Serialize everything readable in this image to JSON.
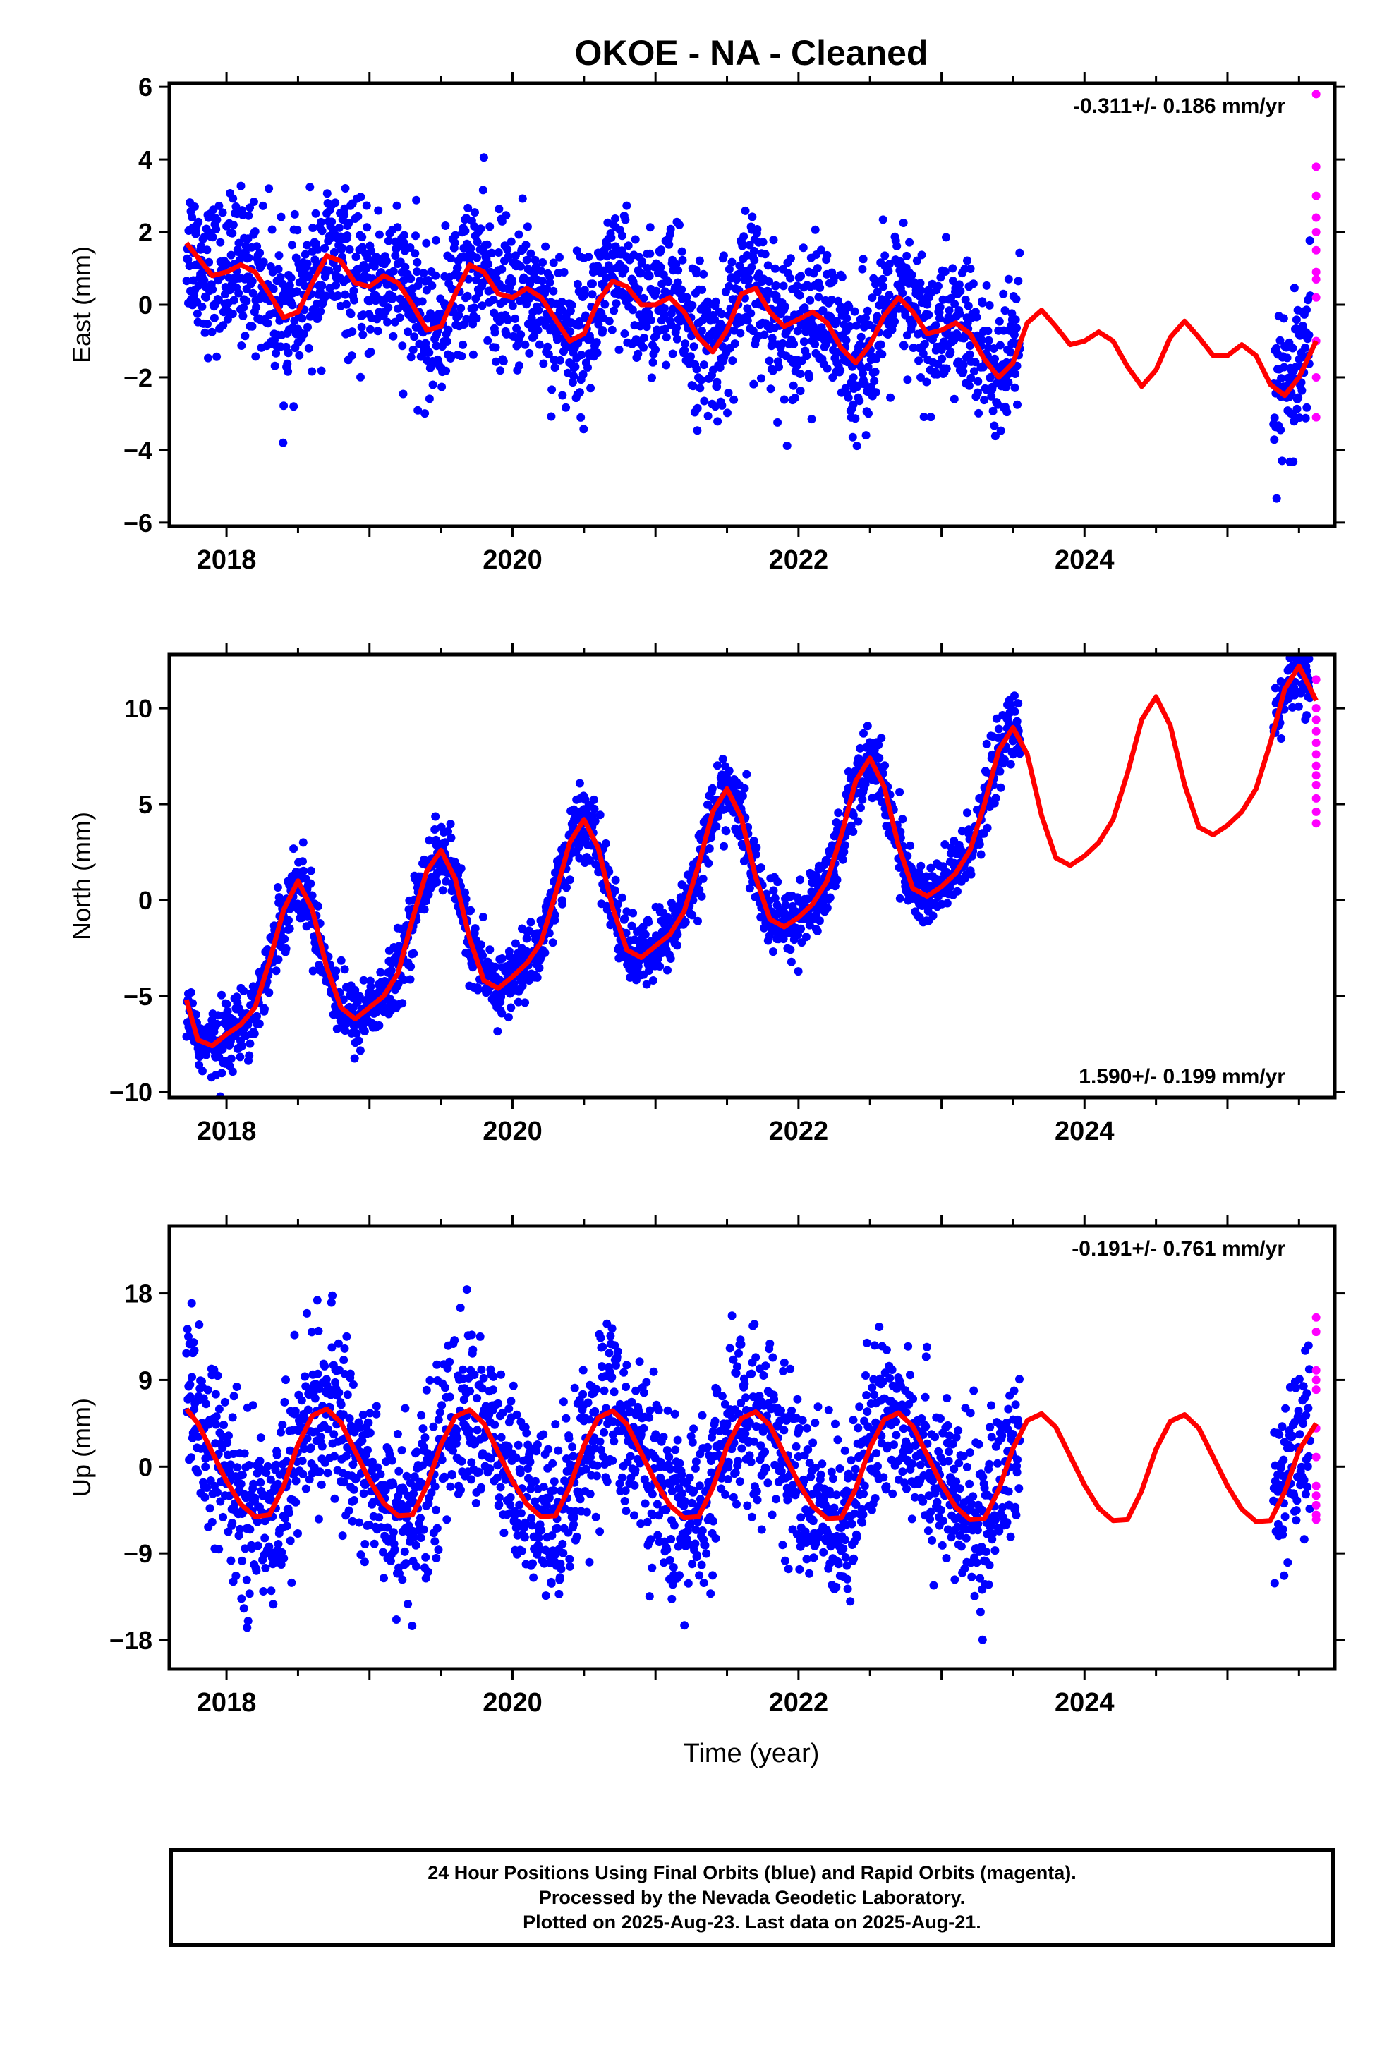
{
  "title": "OKOE  - NA - Cleaned",
  "xlabel": "Time (year)",
  "footer": {
    "line1": "24 Hour Positions Using Final Orbits (blue) and Rapid Orbits (magenta).",
    "line2": "Processed by the Nevada Geodetic Laboratory.",
    "line3": "Plotted on 2025-Aug-23. Last data on 2025-Aug-21."
  },
  "colors": {
    "final": "#0000ff",
    "rapid": "#ff00ff",
    "model": "#ff0000",
    "frame": "#000000"
  },
  "chart_data": [
    {
      "type": "scatter",
      "id": "east",
      "ylabel": "East (mm)",
      "rate": "-0.311+/- 0.186 mm/yr",
      "rate_position": "top-right",
      "xlim": [
        2017.6,
        2025.75
      ],
      "ylim": [
        -6.1,
        6.1
      ],
      "xticks": [
        2018,
        2020,
        2022,
        2024
      ],
      "yticks": [
        -6,
        -4,
        -2,
        0,
        2,
        4,
        6
      ],
      "final_orbits": {
        "spans": [
          [
            2017.72,
            2023.55
          ],
          [
            2025.32,
            2025.58
          ]
        ],
        "model_samples": [
          [
            2017.72,
            1.7
          ],
          [
            2017.8,
            1.3
          ],
          [
            2017.9,
            0.8
          ],
          [
            2018.0,
            0.9
          ],
          [
            2018.1,
            1.1
          ],
          [
            2018.2,
            0.9
          ],
          [
            2018.3,
            0.3
          ],
          [
            2018.4,
            -0.35
          ],
          [
            2018.5,
            -0.2
          ],
          [
            2018.6,
            0.6
          ],
          [
            2018.7,
            1.35
          ],
          [
            2018.8,
            1.2
          ],
          [
            2018.9,
            0.6
          ],
          [
            2019.0,
            0.5
          ],
          [
            2019.1,
            0.8
          ],
          [
            2019.2,
            0.6
          ],
          [
            2019.3,
            0.0
          ],
          [
            2019.4,
            -0.7
          ],
          [
            2019.5,
            -0.6
          ],
          [
            2019.6,
            0.3
          ],
          [
            2019.7,
            1.1
          ],
          [
            2019.8,
            0.9
          ],
          [
            2019.9,
            0.3
          ],
          [
            2020.0,
            0.2
          ],
          [
            2020.1,
            0.45
          ],
          [
            2020.2,
            0.2
          ],
          [
            2020.3,
            -0.4
          ],
          [
            2020.4,
            -1.0
          ],
          [
            2020.5,
            -0.8
          ],
          [
            2020.6,
            0.1
          ],
          [
            2020.7,
            0.65
          ],
          [
            2020.8,
            0.5
          ],
          [
            2020.9,
            0.0
          ],
          [
            2021.0,
            0.0
          ],
          [
            2021.1,
            0.2
          ],
          [
            2021.2,
            -0.2
          ],
          [
            2021.3,
            -0.9
          ],
          [
            2021.4,
            -1.3
          ],
          [
            2021.5,
            -0.7
          ],
          [
            2021.6,
            0.3
          ],
          [
            2021.7,
            0.45
          ],
          [
            2021.8,
            -0.2
          ],
          [
            2021.9,
            -0.6
          ],
          [
            2022.0,
            -0.4
          ],
          [
            2022.1,
            -0.2
          ],
          [
            2022.2,
            -0.5
          ],
          [
            2022.3,
            -1.2
          ],
          [
            2022.4,
            -1.6
          ],
          [
            2022.5,
            -1.1
          ],
          [
            2022.6,
            -0.3
          ],
          [
            2022.7,
            0.2
          ],
          [
            2022.8,
            -0.2
          ],
          [
            2022.9,
            -0.8
          ],
          [
            2023.0,
            -0.7
          ],
          [
            2023.1,
            -0.5
          ],
          [
            2023.2,
            -0.8
          ],
          [
            2023.3,
            -1.5
          ],
          [
            2023.4,
            -2.0
          ],
          [
            2023.5,
            -1.6
          ]
        ],
        "scatter_sigma_mm": 1.0,
        "scatter_count": 2100
      },
      "rapid_orbits": {
        "x": 2025.62,
        "values": [
          5.8,
          3.8,
          3.0,
          2.4,
          2.0,
          1.5,
          0.9,
          0.7,
          0.2,
          -1.0,
          -2.0,
          -3.1
        ]
      },
      "model_curve": [
        [
          2017.72,
          1.7
        ],
        [
          2017.8,
          1.3
        ],
        [
          2017.9,
          0.8
        ],
        [
          2018.0,
          0.9
        ],
        [
          2018.1,
          1.1
        ],
        [
          2018.2,
          0.9
        ],
        [
          2018.3,
          0.3
        ],
        [
          2018.4,
          -0.35
        ],
        [
          2018.5,
          -0.2
        ],
        [
          2018.6,
          0.6
        ],
        [
          2018.7,
          1.35
        ],
        [
          2018.8,
          1.2
        ],
        [
          2018.9,
          0.6
        ],
        [
          2019.0,
          0.5
        ],
        [
          2019.1,
          0.8
        ],
        [
          2019.2,
          0.6
        ],
        [
          2019.3,
          0.0
        ],
        [
          2019.4,
          -0.7
        ],
        [
          2019.5,
          -0.6
        ],
        [
          2019.6,
          0.3
        ],
        [
          2019.7,
          1.1
        ],
        [
          2019.8,
          0.9
        ],
        [
          2019.9,
          0.3
        ],
        [
          2020.0,
          0.2
        ],
        [
          2020.1,
          0.45
        ],
        [
          2020.2,
          0.2
        ],
        [
          2020.3,
          -0.4
        ],
        [
          2020.4,
          -1.0
        ],
        [
          2020.5,
          -0.8
        ],
        [
          2020.6,
          0.1
        ],
        [
          2020.7,
          0.65
        ],
        [
          2020.8,
          0.5
        ],
        [
          2020.9,
          0.0
        ],
        [
          2021.0,
          0.0
        ],
        [
          2021.1,
          0.2
        ],
        [
          2021.2,
          -0.2
        ],
        [
          2021.3,
          -0.9
        ],
        [
          2021.4,
          -1.3
        ],
        [
          2021.5,
          -0.7
        ],
        [
          2021.6,
          0.3
        ],
        [
          2021.7,
          0.45
        ],
        [
          2021.8,
          -0.2
        ],
        [
          2021.9,
          -0.6
        ],
        [
          2022.0,
          -0.4
        ],
        [
          2022.1,
          -0.2
        ],
        [
          2022.2,
          -0.5
        ],
        [
          2022.3,
          -1.2
        ],
        [
          2022.4,
          -1.6
        ],
        [
          2022.5,
          -1.1
        ],
        [
          2022.6,
          -0.3
        ],
        [
          2022.7,
          0.2
        ],
        [
          2022.8,
          -0.2
        ],
        [
          2022.9,
          -0.8
        ],
        [
          2023.0,
          -0.7
        ],
        [
          2023.1,
          -0.5
        ],
        [
          2023.2,
          -0.8
        ],
        [
          2023.3,
          -1.5
        ],
        [
          2023.4,
          -2.0
        ],
        [
          2023.5,
          -1.6
        ],
        [
          2023.6,
          -0.5
        ],
        [
          2023.7,
          -0.15
        ],
        [
          2023.8,
          -0.6
        ],
        [
          2023.9,
          -1.1
        ],
        [
          2024.0,
          -1.0
        ],
        [
          2024.1,
          -0.75
        ],
        [
          2024.2,
          -1.0
        ],
        [
          2024.3,
          -1.7
        ],
        [
          2024.4,
          -2.25
        ],
        [
          2024.5,
          -1.8
        ],
        [
          2024.6,
          -0.9
        ],
        [
          2024.7,
          -0.45
        ],
        [
          2024.8,
          -0.9
        ],
        [
          2024.9,
          -1.4
        ],
        [
          2025.0,
          -1.4
        ],
        [
          2025.1,
          -1.1
        ],
        [
          2025.2,
          -1.4
        ],
        [
          2025.3,
          -2.2
        ],
        [
          2025.4,
          -2.5
        ],
        [
          2025.5,
          -2.0
        ],
        [
          2025.62,
          -1.0
        ]
      ]
    },
    {
      "type": "scatter",
      "id": "north",
      "ylabel": "North (mm)",
      "rate": "1.590+/- 0.199 mm/yr",
      "rate_position": "bottom-right",
      "xlim": [
        2017.6,
        2025.75
      ],
      "ylim": [
        -10.3,
        12.8
      ],
      "xticks": [
        2018,
        2020,
        2022,
        2024
      ],
      "yticks": [
        -10,
        -5,
        0,
        5,
        10
      ],
      "final_orbits": {
        "spans": [
          [
            2017.72,
            2023.55
          ],
          [
            2025.32,
            2025.58
          ]
        ],
        "scatter_sigma_mm": 0.9,
        "scatter_count": 2100
      },
      "rapid_orbits": {
        "x": 2025.62,
        "values": [
          11.5,
          10.0,
          9.4,
          8.8,
          8.2,
          7.6,
          7.0,
          6.5,
          6.0,
          5.3,
          4.6,
          4.0
        ]
      },
      "model_curve": [
        [
          2017.72,
          -5.2
        ],
        [
          2017.8,
          -7.3
        ],
        [
          2017.9,
          -7.6
        ],
        [
          2018.0,
          -7.0
        ],
        [
          2018.1,
          -6.5
        ],
        [
          2018.2,
          -5.6
        ],
        [
          2018.3,
          -3.2
        ],
        [
          2018.4,
          -0.5
        ],
        [
          2018.5,
          1.0
        ],
        [
          2018.6,
          -0.5
        ],
        [
          2018.7,
          -3.5
        ],
        [
          2018.8,
          -5.6
        ],
        [
          2018.9,
          -6.2
        ],
        [
          2019.0,
          -5.6
        ],
        [
          2019.1,
          -5.0
        ],
        [
          2019.2,
          -3.8
        ],
        [
          2019.3,
          -1.0
        ],
        [
          2019.4,
          1.5
        ],
        [
          2019.5,
          2.6
        ],
        [
          2019.6,
          1.1
        ],
        [
          2019.7,
          -2.0
        ],
        [
          2019.8,
          -4.2
        ],
        [
          2019.9,
          -4.6
        ],
        [
          2020.0,
          -4.0
        ],
        [
          2020.1,
          -3.3
        ],
        [
          2020.2,
          -2.2
        ],
        [
          2020.3,
          0.3
        ],
        [
          2020.4,
          3.0
        ],
        [
          2020.5,
          4.2
        ],
        [
          2020.6,
          2.7
        ],
        [
          2020.7,
          -0.4
        ],
        [
          2020.8,
          -2.6
        ],
        [
          2020.9,
          -3.0
        ],
        [
          2021.0,
          -2.4
        ],
        [
          2021.1,
          -1.8
        ],
        [
          2021.2,
          -0.6
        ],
        [
          2021.3,
          1.8
        ],
        [
          2021.4,
          4.6
        ],
        [
          2021.5,
          5.8
        ],
        [
          2021.6,
          4.3
        ],
        [
          2021.7,
          1.2
        ],
        [
          2021.8,
          -1.0
        ],
        [
          2021.9,
          -1.4
        ],
        [
          2022.0,
          -0.9
        ],
        [
          2022.1,
          -0.2
        ],
        [
          2022.2,
          1.0
        ],
        [
          2022.3,
          3.4
        ],
        [
          2022.4,
          6.2
        ],
        [
          2022.5,
          7.4
        ],
        [
          2022.6,
          5.9
        ],
        [
          2022.7,
          2.8
        ],
        [
          2022.8,
          0.6
        ],
        [
          2022.9,
          0.2
        ],
        [
          2023.0,
          0.7
        ],
        [
          2023.1,
          1.4
        ],
        [
          2023.2,
          2.6
        ],
        [
          2023.3,
          5.0
        ],
        [
          2023.4,
          7.8
        ],
        [
          2023.5,
          9.0
        ],
        [
          2023.6,
          7.6
        ],
        [
          2023.7,
          4.4
        ],
        [
          2023.8,
          2.2
        ],
        [
          2023.9,
          1.8
        ],
        [
          2024.0,
          2.3
        ],
        [
          2024.1,
          3.0
        ],
        [
          2024.2,
          4.2
        ],
        [
          2024.3,
          6.6
        ],
        [
          2024.4,
          9.4
        ],
        [
          2024.5,
          10.6
        ],
        [
          2024.6,
          9.1
        ],
        [
          2024.7,
          6.0
        ],
        [
          2024.8,
          3.8
        ],
        [
          2024.9,
          3.4
        ],
        [
          2025.0,
          3.9
        ],
        [
          2025.1,
          4.6
        ],
        [
          2025.2,
          5.8
        ],
        [
          2025.3,
          8.2
        ],
        [
          2025.4,
          11.0
        ],
        [
          2025.5,
          12.2
        ],
        [
          2025.62,
          10.4
        ]
      ]
    },
    {
      "type": "scatter",
      "id": "up",
      "ylabel": "Up (mm)",
      "rate": "-0.191+/- 0.761 mm/yr",
      "rate_position": "top-right",
      "xlim": [
        2017.6,
        2025.75
      ],
      "ylim": [
        -21.0,
        25.0
      ],
      "xticks": [
        2018,
        2020,
        2022,
        2024
      ],
      "yticks": [
        -18,
        -9,
        0,
        9,
        18
      ],
      "final_orbits": {
        "spans": [
          [
            2017.72,
            2023.55
          ],
          [
            2025.32,
            2025.58
          ]
        ],
        "scatter_sigma_mm": 4.5,
        "scatter_count": 2100
      },
      "rapid_orbits": {
        "x": 2025.62,
        "values": [
          15.5,
          14.0,
          10.0,
          9.0,
          8.0,
          4.0,
          1.0,
          -2.0,
          -3.0,
          -4.0,
          -5.0,
          -5.5
        ]
      },
      "model_curve": [
        [
          2017.72,
          6.0
        ],
        [
          2017.8,
          4.5
        ],
        [
          2017.9,
          1.5
        ],
        [
          2018.0,
          -1.5
        ],
        [
          2018.1,
          -3.9
        ],
        [
          2018.2,
          -5.2
        ],
        [
          2018.3,
          -5.0
        ],
        [
          2018.4,
          -2.0
        ],
        [
          2018.5,
          2.3
        ],
        [
          2018.6,
          5.3
        ],
        [
          2018.7,
          6.0
        ],
        [
          2018.8,
          4.6
        ],
        [
          2018.9,
          1.6
        ],
        [
          2019.0,
          -1.4
        ],
        [
          2019.1,
          -3.8
        ],
        [
          2019.2,
          -5.1
        ],
        [
          2019.3,
          -5.0
        ],
        [
          2019.4,
          -2.0
        ],
        [
          2019.5,
          2.3
        ],
        [
          2019.6,
          5.2
        ],
        [
          2019.7,
          5.9
        ],
        [
          2019.8,
          4.5
        ],
        [
          2019.9,
          1.5
        ],
        [
          2020.0,
          -1.5
        ],
        [
          2020.1,
          -3.9
        ],
        [
          2020.2,
          -5.2
        ],
        [
          2020.3,
          -5.1
        ],
        [
          2020.4,
          -2.1
        ],
        [
          2020.5,
          2.2
        ],
        [
          2020.6,
          5.1
        ],
        [
          2020.7,
          5.8
        ],
        [
          2020.8,
          4.4
        ],
        [
          2020.9,
          1.4
        ],
        [
          2021.0,
          -1.6
        ],
        [
          2021.1,
          -4.0
        ],
        [
          2021.2,
          -5.3
        ],
        [
          2021.3,
          -5.2
        ],
        [
          2021.4,
          -2.2
        ],
        [
          2021.5,
          2.1
        ],
        [
          2021.6,
          5.0
        ],
        [
          2021.7,
          5.7
        ],
        [
          2021.8,
          4.3
        ],
        [
          2021.9,
          1.3
        ],
        [
          2022.0,
          -1.7
        ],
        [
          2022.1,
          -4.1
        ],
        [
          2022.2,
          -5.4
        ],
        [
          2022.3,
          -5.3
        ],
        [
          2022.4,
          -2.3
        ],
        [
          2022.5,
          2.0
        ],
        [
          2022.6,
          4.9
        ],
        [
          2022.7,
          5.6
        ],
        [
          2022.8,
          4.2
        ],
        [
          2022.9,
          1.2
        ],
        [
          2023.0,
          -1.8
        ],
        [
          2023.1,
          -4.2
        ],
        [
          2023.2,
          -5.5
        ],
        [
          2023.3,
          -5.4
        ],
        [
          2023.4,
          -2.4
        ],
        [
          2023.5,
          1.9
        ],
        [
          2023.6,
          4.8
        ],
        [
          2023.7,
          5.5
        ],
        [
          2023.8,
          4.1
        ],
        [
          2023.9,
          1.1
        ],
        [
          2024.0,
          -1.9
        ],
        [
          2024.1,
          -4.3
        ],
        [
          2024.2,
          -5.6
        ],
        [
          2024.3,
          -5.5
        ],
        [
          2024.4,
          -2.5
        ],
        [
          2024.5,
          1.8
        ],
        [
          2024.6,
          4.7
        ],
        [
          2024.7,
          5.4
        ],
        [
          2024.8,
          4.0
        ],
        [
          2024.9,
          1.0
        ],
        [
          2025.0,
          -2.0
        ],
        [
          2025.1,
          -4.4
        ],
        [
          2025.2,
          -5.7
        ],
        [
          2025.3,
          -5.6
        ],
        [
          2025.4,
          -2.6
        ],
        [
          2025.5,
          1.7
        ],
        [
          2025.62,
          4.5
        ]
      ]
    }
  ]
}
